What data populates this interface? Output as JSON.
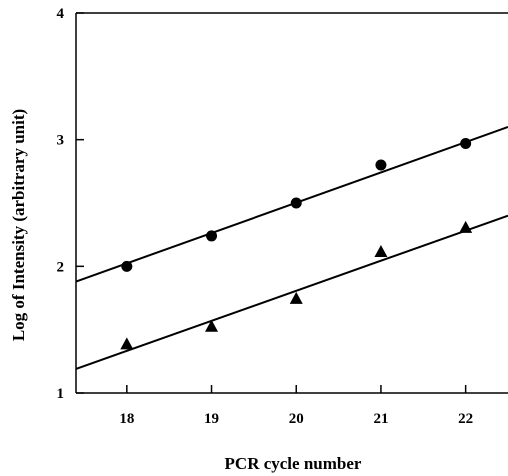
{
  "chart_data": {
    "type": "scatter",
    "title": "",
    "xlabel": "PCR cycle number",
    "ylabel": "Log of Intensity (arbitrary unit)",
    "xlim": [
      17.4,
      22.5
    ],
    "ylim": [
      1,
      4
    ],
    "x_ticks": [
      18,
      19,
      20,
      21,
      22
    ],
    "y_ticks": [
      1,
      2,
      3,
      4
    ],
    "grid": false,
    "legend": "none",
    "series": [
      {
        "marker": "circle",
        "x": [
          18,
          19,
          20,
          21,
          22
        ],
        "y": [
          2.0,
          2.24,
          2.5,
          2.8,
          2.97
        ],
        "fit_line": {
          "x": [
            17.4,
            22.5
          ],
          "y": [
            1.88,
            3.1
          ]
        }
      },
      {
        "marker": "triangle",
        "x": [
          18,
          19,
          20,
          21,
          22
        ],
        "y": [
          1.38,
          1.52,
          1.74,
          2.11,
          2.3
        ],
        "fit_line": {
          "x": [
            17.4,
            22.5
          ],
          "y": [
            1.19,
            2.4
          ]
        }
      }
    ],
    "colors": {
      "marks": "#000000",
      "background": "#ffffff"
    }
  }
}
